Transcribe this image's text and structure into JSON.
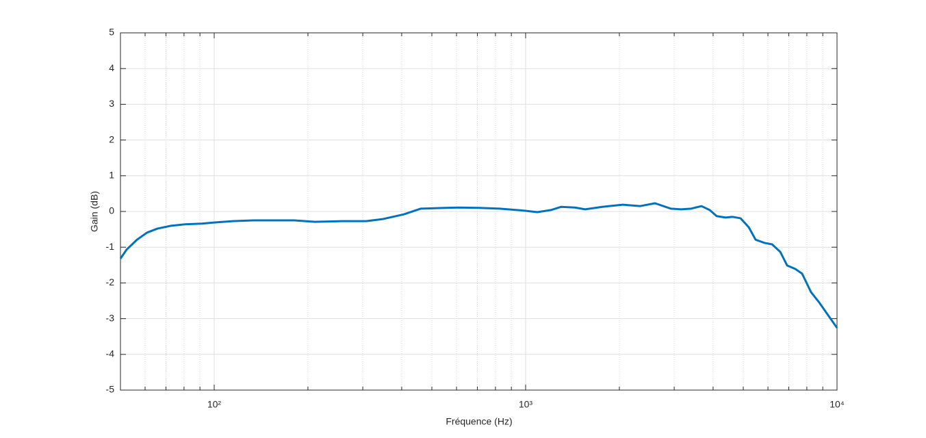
{
  "chart_data": {
    "type": "line",
    "xlabel": "Fréquence (Hz)",
    "ylabel": "Gain (dB)",
    "x": [
      50,
      52.3,
      56.5,
      60.9,
      65.7,
      72.7,
      80.5,
      91.3,
      100,
      114.7,
      133.5,
      155.3,
      180.8,
      210.4,
      257.8,
      307.6,
      349.2,
      406.4,
      460.9,
      550.6,
      609.1,
      708.8,
      825.1,
      1000,
      1090,
      1206,
      1301,
      1440,
      1553,
      1763,
      2052,
      2329,
      2603,
      2924,
      3155,
      3402,
      3670,
      3901,
      4105,
      4385,
      4610,
      4899,
      5207,
      5477,
      5850,
      6184,
      6572,
      6913,
      7345,
      7725,
      8253,
      8770,
      9268,
      10000
    ],
    "values": [
      -1.32,
      -1.07,
      -0.79,
      -0.59,
      -0.48,
      -0.4,
      -0.36,
      -0.34,
      -0.31,
      -0.27,
      -0.25,
      -0.25,
      -0.25,
      -0.29,
      -0.27,
      -0.27,
      -0.21,
      -0.08,
      0.08,
      0.1,
      0.11,
      0.1,
      0.08,
      0.02,
      -0.02,
      0.04,
      0.13,
      0.11,
      0.06,
      0.13,
      0.19,
      0.15,
      0.23,
      0.08,
      0.06,
      0.08,
      0.15,
      0.04,
      -0.13,
      -0.17,
      -0.15,
      -0.19,
      -0.44,
      -0.79,
      -0.88,
      -0.92,
      -1.13,
      -1.51,
      -1.61,
      -1.74,
      -2.26,
      -2.55,
      -2.85,
      -3.26
    ],
    "color": "#0072bd",
    "xscale": "log",
    "xlim": [
      50,
      10000
    ],
    "xticks": [
      {
        "value": 100,
        "label": "10²"
      },
      {
        "value": 1000,
        "label": "10³"
      },
      {
        "value": 10000,
        "label": "10⁴"
      }
    ],
    "ylim": [
      -5,
      5
    ],
    "yticks": [
      -5,
      -4,
      -3,
      -2,
      -1,
      0,
      1,
      2,
      3,
      4,
      5
    ],
    "grid": true,
    "minor_grid": true
  }
}
